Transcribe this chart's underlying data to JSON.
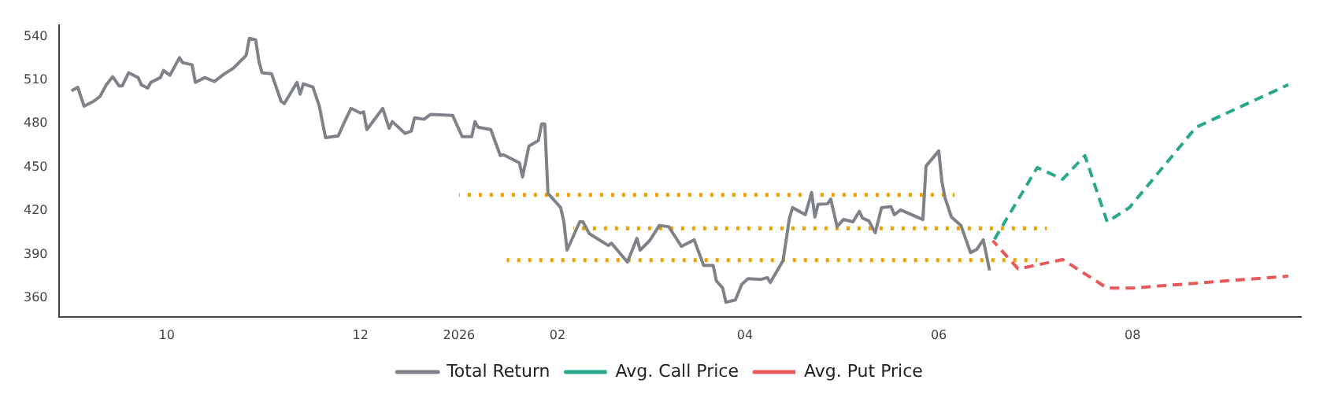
{
  "chart_data": {
    "type": "line",
    "xlim": [
      "2025-08-28",
      "2026-09-23"
    ],
    "ylim": [
      347,
      548
    ],
    "xticks": [
      {
        "value": "2025-10-01",
        "label": "10"
      },
      {
        "value": "2025-12-01",
        "label": "12"
      },
      {
        "value": "2026-01-01",
        "label": "2026"
      },
      {
        "value": "2026-02-01",
        "label": "02"
      },
      {
        "value": "2026-04-01",
        "label": "04"
      },
      {
        "value": "2026-06-01",
        "label": "06"
      },
      {
        "value": "2026-08-01",
        "label": "08"
      }
    ],
    "yticks": [
      360,
      390,
      420,
      450,
      480,
      510,
      540
    ],
    "grid": false,
    "legend": "bottom",
    "marker": "none",
    "series": [
      {
        "name": "Total Return",
        "color": "#7f8389",
        "line_style": "solid",
        "x": [
          "2025-09-01",
          "2025-09-03",
          "2025-09-05",
          "2025-09-08",
          "2025-09-10",
          "2025-09-12",
          "2025-09-14",
          "2025-09-16",
          "2025-09-17",
          "2025-09-19",
          "2025-09-22",
          "2025-09-23",
          "2025-09-25",
          "2025-09-26",
          "2025-09-29",
          "2025-09-30",
          "2025-10-02",
          "2025-10-05",
          "2025-10-06",
          "2025-10-09",
          "2025-10-10",
          "2025-10-13",
          "2025-10-16",
          "2025-10-19",
          "2025-10-22",
          "2025-10-26",
          "2025-10-27",
          "2025-10-29",
          "2025-10-30",
          "2025-10-31",
          "2025-11-03",
          "2025-11-06",
          "2025-11-07",
          "2025-11-11",
          "2025-11-12",
          "2025-11-13",
          "2025-11-16",
          "2025-11-18",
          "2025-11-20",
          "2025-11-24",
          "2025-11-26",
          "2025-11-28",
          "2025-12-01",
          "2025-12-02",
          "2025-12-03",
          "2025-12-08",
          "2025-12-10",
          "2025-12-11",
          "2025-12-15",
          "2025-12-17",
          "2025-12-18",
          "2025-12-21",
          "2025-12-23",
          "2025-12-30",
          "2026-01-02",
          "2026-01-05",
          "2026-01-06",
          "2026-01-07",
          "2026-01-11",
          "2026-01-14",
          "2026-01-15",
          "2026-01-20",
          "2026-01-21",
          "2026-01-23",
          "2026-01-26",
          "2026-01-27",
          "2026-01-28",
          "2026-01-29",
          "2026-02-02",
          "2026-02-03",
          "2026-02-04",
          "2026-02-08",
          "2026-02-09",
          "2026-02-11",
          "2026-02-17",
          "2026-02-18",
          "2026-02-23",
          "2026-02-26",
          "2026-02-27",
          "2026-03-02",
          "2026-03-05",
          "2026-03-08",
          "2026-03-12",
          "2026-03-16",
          "2026-03-19",
          "2026-03-22",
          "2026-03-23",
          "2026-03-25",
          "2026-03-26",
          "2026-03-29",
          "2026-03-31",
          "2026-04-02",
          "2026-04-06",
          "2026-04-08",
          "2026-04-09",
          "2026-04-13",
          "2026-04-15",
          "2026-04-16",
          "2026-04-20",
          "2026-04-22",
          "2026-04-23",
          "2026-04-24",
          "2026-04-27",
          "2026-04-28",
          "2026-04-30",
          "2026-05-02",
          "2026-05-05",
          "2026-05-07",
          "2026-05-08",
          "2026-05-10",
          "2026-05-12",
          "2026-05-14",
          "2026-05-17",
          "2026-05-18",
          "2026-05-20",
          "2026-05-27",
          "2026-05-28",
          "2026-06-01",
          "2026-06-02",
          "2026-06-03",
          "2026-06-05",
          "2026-06-08",
          "2026-06-11",
          "2026-06-13",
          "2026-06-15",
          "2026-06-16",
          "2026-06-17"
        ],
        "values": [
          502.6,
          505,
          492,
          495.4,
          498.7,
          506.8,
          512.3,
          506,
          506,
          515,
          511.7,
          506.8,
          504.5,
          508.4,
          511.7,
          516.6,
          513.3,
          525.4,
          522,
          520.5,
          508.4,
          511.7,
          509,
          514,
          518.2,
          527,
          538.7,
          537.7,
          523,
          515,
          514.3,
          495.4,
          493.8,
          508.4,
          500.3,
          507.4,
          505.2,
          492.2,
          470.3,
          471.6,
          481.4,
          490.5,
          487.3,
          488,
          475.9,
          490.5,
          476.8,
          481.4,
          473.3,
          474.9,
          484,
          483,
          486.3,
          485.6,
          471,
          471,
          481.4,
          477.5,
          475.9,
          458,
          458.6,
          453,
          443.3,
          464.5,
          468.4,
          479.8,
          479.8,
          432,
          422.2,
          412.4,
          392.9,
          412.4,
          412.4,
          404.3,
          396.1,
          397.7,
          384.7,
          401,
          392.9,
          399.4,
          409.8,
          409.1,
          395.5,
          400,
          382.4,
          382.4,
          371.7,
          366.8,
          357,
          358.7,
          369.4,
          373.3,
          372.7,
          374,
          370.7,
          385.7,
          415,
          422.2,
          417.3,
          432.6,
          415.6,
          424.4,
          424.8,
          428,
          409.1,
          414,
          412.4,
          419.6,
          415,
          413,
          404.9,
          422.2,
          422.8,
          417.3,
          420.6,
          414,
          450.8,
          461.2,
          440,
          428.7,
          415.6,
          409.8,
          391.2,
          393.5,
          400,
          389.6,
          378.9
        ]
      },
      {
        "name": "Avg. Call Price",
        "color": "#2aa88a",
        "line_style": "dashed",
        "x": [
          "2026-06-18",
          "2026-07-02",
          "2026-07-10",
          "2026-07-17",
          "2026-07-24",
          "2026-07-31",
          "2026-08-21",
          "2026-09-19"
        ],
        "values": [
          398.4,
          449.8,
          441.7,
          458,
          412.4,
          422.2,
          477.5,
          506.8
        ]
      },
      {
        "name": "Avg. Put Price",
        "color": "#e85a5a",
        "line_style": "dashed",
        "x": [
          "2026-06-18",
          "2026-06-26",
          "2026-07-10",
          "2026-07-24",
          "2026-08-01",
          "2026-09-19"
        ],
        "values": [
          399.4,
          380,
          386.4,
          366.8,
          366.8,
          375
        ]
      },
      {
        "color": "#f0a000",
        "line_style": "dotted",
        "x": [
          "2026-01-01",
          "2026-06-06"
        ],
        "values": [
          431,
          431
        ]
      },
      {
        "color": "#f0a000",
        "line_style": "dotted",
        "x": [
          "2026-02-06",
          "2026-07-05"
        ],
        "values": [
          408,
          408
        ]
      },
      {
        "color": "#f0a000",
        "line_style": "dotted",
        "x": [
          "2026-01-16",
          "2026-07-02"
        ],
        "values": [
          386,
          386
        ]
      }
    ]
  }
}
